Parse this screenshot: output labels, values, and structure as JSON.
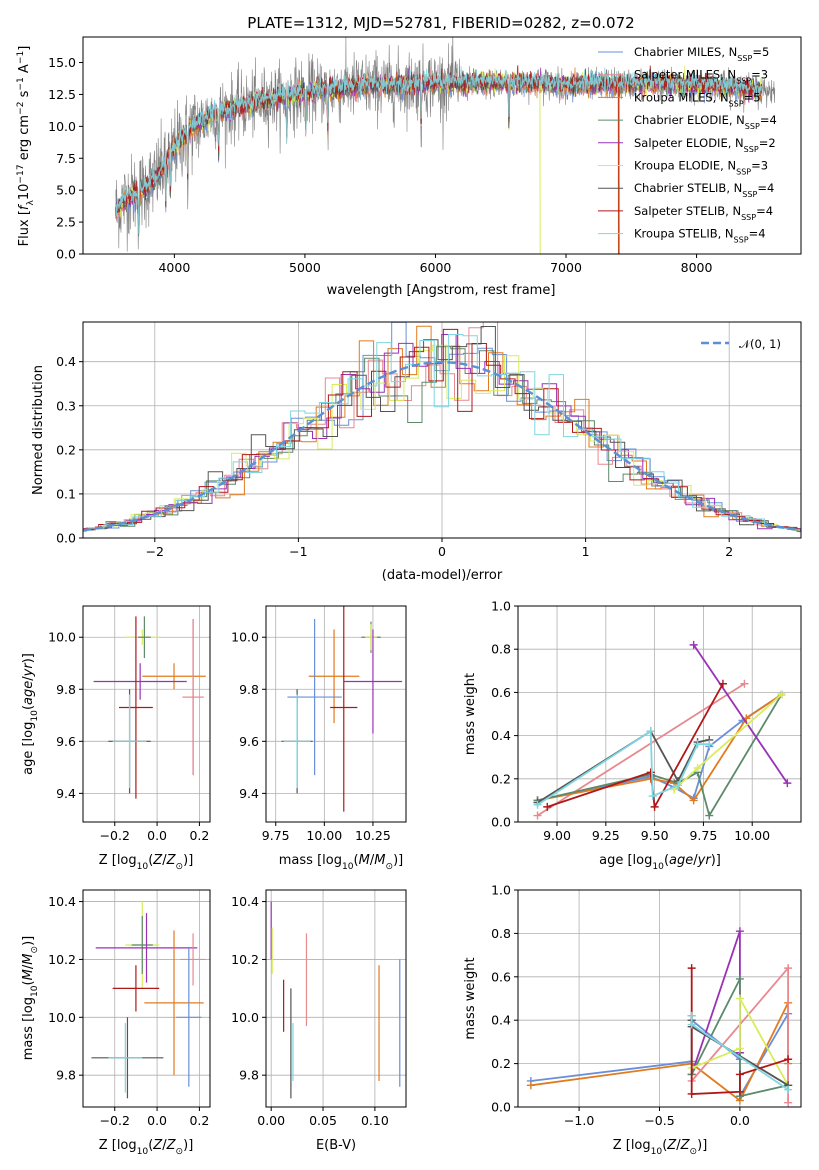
{
  "chart_data": [
    {
      "type": "line",
      "title": "PLATE=1312, MJD=52781, FIBERID=0282, z=0.072",
      "xlabel": "wavelength [Angstrom, rest frame]",
      "ylabel": "Flux [f_λ 10^-17 erg cm^-2 s^-1 A^-1]",
      "xlim": [
        3300,
        8800
      ],
      "ylim": [
        0,
        17
      ],
      "xticks": [
        4000,
        5000,
        6000,
        7000,
        8000
      ],
      "yticks": [
        0.0,
        2.5,
        5.0,
        7.5,
        10.0,
        12.5,
        15.0
      ],
      "legend_placement": "top-right",
      "continuum": {
        "x": [
          3550,
          3650,
          3750,
          3850,
          3950,
          4050,
          4150,
          4300,
          4500,
          4700,
          4900,
          5100,
          5300,
          5500,
          5700,
          5900,
          6100,
          6300,
          6500,
          6700,
          6900,
          7100,
          7300,
          7500,
          7700,
          7900,
          8100,
          8300,
          8500
        ],
        "y": [
          3.5,
          4.5,
          5.0,
          5.8,
          7.5,
          9.0,
          10.0,
          11.0,
          11.5,
          12.0,
          12.5,
          12.8,
          13.0,
          13.2,
          13.2,
          13.4,
          13.4,
          13.3,
          13.4,
          13.4,
          13.3,
          13.2,
          13.3,
          13.3,
          13.4,
          13.2,
          13.2,
          13.0,
          12.8
        ]
      },
      "series": [
        {
          "name": "Chabrier MILES, N_SSP=5",
          "color": "#6a8fd8"
        },
        {
          "name": "Salpeter MILES, N_SSP=3",
          "color": "#e8888f"
        },
        {
          "name": "Kroupa MILES, N_SSP=5",
          "color": "#e07b20"
        },
        {
          "name": "Chabrier ELODIE, N_SSP=4",
          "color": "#5c8a6a"
        },
        {
          "name": "Salpeter ELODIE, N_SSP=2",
          "color": "#9932b5"
        },
        {
          "name": "Kroupa ELODIE, N_SSP=3",
          "color": "#d9ec5a"
        },
        {
          "name": "Chabrier STELIB, N_SSP=4",
          "color": "#555555"
        },
        {
          "name": "Salpeter STELIB, N_SSP=4",
          "color": "#b01818"
        },
        {
          "name": "Kroupa STELIB, N_SSP=4",
          "color": "#7fd6e0"
        }
      ]
    },
    {
      "type": "histogram",
      "xlabel": "(data-model)/error",
      "ylabel": "Normed distribution",
      "xlim": [
        -2.5,
        2.5
      ],
      "ylim": [
        0,
        0.49
      ],
      "xticks": [
        -2,
        -1,
        0,
        1,
        2
      ],
      "yticks": [
        0.0,
        0.1,
        0.2,
        0.3,
        0.4
      ],
      "grid": true,
      "legend_placement": "top-right",
      "legend": "𝒩(0, 1)",
      "gaussian_color": "#5b8fd6"
    },
    {
      "type": "scatter",
      "xlabel": "Z [log10(Z/Z_sun)]",
      "ylabel": "age  [log10(age/yr)]",
      "xlim": [
        -0.35,
        0.25
      ],
      "ylim": [
        9.29,
        10.12
      ],
      "xticks": [
        -0.2,
        0.0,
        0.2
      ],
      "yticks": [
        9.4,
        9.6,
        9.8,
        10.0
      ],
      "grid": true,
      "points": [
        {
          "x": -0.07,
          "y": 10.0,
          "xe": 0.08,
          "ye": 0.03,
          "c": "#d9ec5a"
        },
        {
          "x": -0.06,
          "y": 10.0,
          "xe": 0.03,
          "ye": 0.08,
          "c": "#5c8a6a"
        },
        {
          "x": 0.08,
          "y": 9.85,
          "xe": 0.15,
          "ye": 0.05,
          "c": "#e07b20"
        },
        {
          "x": -0.08,
          "y": 9.83,
          "xe": 0.22,
          "ye": 0.07,
          "c": "#9932b5"
        },
        {
          "x": 0.17,
          "y": 9.77,
          "xe": 0.05,
          "ye": 0.3,
          "c": "#6a8fd8"
        },
        {
          "x": 0.17,
          "y": 9.77,
          "xe": 0.05,
          "ye": 0.3,
          "c": "#e8888f"
        },
        {
          "x": -0.1,
          "y": 9.73,
          "xe": 0.08,
          "ye": 0.35,
          "c": "#b01818"
        },
        {
          "x": -0.13,
          "y": 9.6,
          "xe": 0.1,
          "ye": 0.2,
          "c": "#555555"
        },
        {
          "x": -0.13,
          "y": 9.6,
          "xe": 0.08,
          "ye": 0.18,
          "c": "#7fd6e0"
        }
      ]
    },
    {
      "type": "scatter",
      "xlabel": "mass [log10(M/M_sun)]",
      "ylabel": "",
      "xlim": [
        9.7,
        10.42
      ],
      "ylim": [
        9.29,
        10.12
      ],
      "xticks": [
        9.75,
        10.0,
        10.25
      ],
      "yticks": [
        9.4,
        9.6,
        9.8,
        10.0
      ],
      "grid": true,
      "points": [
        {
          "x": 10.24,
          "y": 10.0,
          "xe": 0.05,
          "ye": 0.06,
          "c": "#5c8a6a"
        },
        {
          "x": 10.24,
          "y": 10.0,
          "xe": 0.03,
          "ye": 0.05,
          "c": "#d9ec5a"
        },
        {
          "x": 10.05,
          "y": 9.85,
          "xe": 0.13,
          "ye": 0.18,
          "c": "#e07b20"
        },
        {
          "x": 10.25,
          "y": 9.83,
          "xe": 0.15,
          "ye": 0.2,
          "c": "#9932b5"
        },
        {
          "x": 9.95,
          "y": 9.77,
          "xe": 0.14,
          "ye": 0.3,
          "c": "#6a8fd8"
        },
        {
          "x": 10.1,
          "y": 9.73,
          "xe": 0.07,
          "ye": 0.4,
          "c": "#b01818"
        },
        {
          "x": 9.86,
          "y": 9.6,
          "xe": 0.08,
          "ye": 0.2,
          "c": "#555555"
        },
        {
          "x": 9.86,
          "y": 9.6,
          "xe": 0.07,
          "ye": 0.18,
          "c": "#7fd6e0"
        }
      ]
    },
    {
      "type": "line",
      "xlabel": "age  [log10(age/yr)]",
      "ylabel": "mass weight",
      "xlim": [
        8.8,
        10.25
      ],
      "ylim": [
        0,
        1.0
      ],
      "xticks": [
        9.0,
        9.25,
        9.5,
        9.75,
        10.0
      ],
      "yticks": [
        0.0,
        0.2,
        0.4,
        0.6,
        0.8,
        1.0
      ],
      "grid": true,
      "series": [
        {
          "c": "#6a8fd8",
          "x": [
            8.9,
            9.48,
            9.6,
            9.7,
            9.78,
            9.95,
            10.15
          ],
          "y": [
            0.1,
            0.21,
            0.16,
            0.11,
            0.35,
            0.47,
            0.59
          ]
        },
        {
          "c": "#e8888f",
          "x": [
            8.9,
            9.96
          ],
          "y": [
            0.03,
            0.64
          ]
        },
        {
          "c": "#e07b20",
          "x": [
            8.9,
            9.48,
            9.6,
            9.7,
            9.97,
            10.15
          ],
          "y": [
            0.1,
            0.2,
            0.18,
            0.1,
            0.48,
            0.59
          ]
        },
        {
          "c": "#5c8a6a",
          "x": [
            8.9,
            9.48,
            9.62,
            9.72,
            9.78,
            10.15
          ],
          "y": [
            0.1,
            0.22,
            0.18,
            0.23,
            0.03,
            0.59
          ]
        },
        {
          "c": "#9932b5",
          "x": [
            9.7,
            10.18
          ],
          "y": [
            0.82,
            0.18
          ]
        },
        {
          "c": "#d9ec5a",
          "x": [
            9.6,
            9.72,
            10.15
          ],
          "y": [
            0.15,
            0.25,
            0.59
          ]
        },
        {
          "c": "#555555",
          "x": [
            8.9,
            9.48,
            9.62,
            9.72,
            9.78
          ],
          "y": [
            0.09,
            0.42,
            0.19,
            0.37,
            0.38
          ]
        },
        {
          "c": "#b01818",
          "x": [
            8.95,
            9.48,
            9.5,
            9.85
          ],
          "y": [
            0.07,
            0.23,
            0.07,
            0.64
          ]
        },
        {
          "c": "#7fd6e0",
          "x": [
            8.9,
            9.48,
            9.49,
            9.62,
            9.72,
            9.78
          ],
          "y": [
            0.08,
            0.42,
            0.12,
            0.17,
            0.36,
            0.36
          ]
        }
      ]
    },
    {
      "type": "scatter",
      "xlabel": "Z [log10(Z/Z_sun)]",
      "ylabel": "mass [log10(M/M_sun)]",
      "xlim": [
        -0.35,
        0.25
      ],
      "ylim": [
        9.69,
        10.44
      ],
      "xticks": [
        -0.2,
        0.0,
        0.2
      ],
      "yticks": [
        9.8,
        10.0,
        10.2,
        10.4
      ],
      "grid": true,
      "points": [
        {
          "x": -0.07,
          "y": 10.25,
          "xe": 0.08,
          "ye": 0.15,
          "c": "#d9ec5a"
        },
        {
          "x": -0.07,
          "y": 10.25,
          "xe": 0.05,
          "ye": 0.1,
          "c": "#5c8a6a"
        },
        {
          "x": -0.05,
          "y": 10.24,
          "xe": 0.24,
          "ye": 0.12,
          "c": "#9932b5"
        },
        {
          "x": 0.17,
          "y": 10.2,
          "xe": 0.06,
          "ye": 0.09,
          "c": "#e8888f"
        },
        {
          "x": -0.1,
          "y": 10.1,
          "xe": 0.11,
          "ye": 0.08,
          "c": "#b01818"
        },
        {
          "x": 0.08,
          "y": 10.05,
          "xe": 0.14,
          "ye": 0.25,
          "c": "#e07b20"
        },
        {
          "x": 0.15,
          "y": 10.0,
          "xe": 0.06,
          "ye": 0.24,
          "c": "#6a8fd8"
        },
        {
          "x": -0.14,
          "y": 9.86,
          "xe": 0.17,
          "ye": 0.14,
          "c": "#555555"
        },
        {
          "x": -0.15,
          "y": 9.86,
          "xe": 0.08,
          "ye": 0.12,
          "c": "#7fd6e0"
        }
      ]
    },
    {
      "type": "scatter",
      "xlabel": "E(B-V)",
      "ylabel": "",
      "xlim": [
        -0.005,
        0.13
      ],
      "ylim": [
        9.69,
        10.44
      ],
      "xticks": [
        0.0,
        0.05,
        0.1
      ],
      "yticks": [
        9.8,
        10.0,
        10.2,
        10.4
      ],
      "grid": true,
      "points": [
        {
          "x": 0.0,
          "y": 10.3,
          "xe": 0,
          "ye": 0.1,
          "c": "#9932b5"
        },
        {
          "x": 0.001,
          "y": 10.23,
          "xe": 0,
          "ye": 0.08,
          "c": "#d9ec5a"
        },
        {
          "x": 0.012,
          "y": 10.04,
          "xe": 0,
          "ye": 0.09,
          "c": "#b01818"
        },
        {
          "x": 0.019,
          "y": 9.91,
          "xe": 0,
          "ye": 0.19,
          "c": "#555555"
        },
        {
          "x": 0.021,
          "y": 9.88,
          "xe": 0,
          "ye": 0.1,
          "c": "#7fd6e0"
        },
        {
          "x": 0.034,
          "y": 10.13,
          "xe": 0,
          "ye": 0.16,
          "c": "#e8888f"
        },
        {
          "x": 0.104,
          "y": 9.98,
          "xe": 0,
          "ye": 0.2,
          "c": "#e07b20"
        },
        {
          "x": 0.124,
          "y": 9.98,
          "xe": 0,
          "ye": 0.22,
          "c": "#6a8fd8"
        }
      ]
    },
    {
      "type": "line",
      "xlabel": "Z [log10(Z/Z_sun)]",
      "ylabel": "mass weight",
      "xlim": [
        -1.38,
        0.38
      ],
      "ylim": [
        0,
        1.0
      ],
      "xticks": [
        -1.0,
        -0.5,
        0.0
      ],
      "yticks": [
        0.0,
        0.2,
        0.4,
        0.6,
        0.8,
        1.0
      ],
      "grid": true,
      "series": [
        {
          "c": "#6a8fd8",
          "x": [
            -1.3,
            -0.3,
            -0.3,
            0.0,
            0.0,
            0.3,
            0.3
          ],
          "y": [
            0.12,
            0.21,
            0.4,
            0.22,
            0.05,
            0.43,
            0.1
          ]
        },
        {
          "c": "#e07b20",
          "x": [
            -1.3,
            -0.3,
            0.0,
            0.3,
            0.3
          ],
          "y": [
            0.1,
            0.2,
            0.03,
            0.48,
            0.2
          ]
        },
        {
          "c": "#e8888f",
          "x": [
            -0.3,
            0.3,
            0.3
          ],
          "y": [
            0.12,
            0.64,
            0.02
          ]
        },
        {
          "c": "#9932b5",
          "x": [
            -0.3,
            0.0,
            0.0
          ],
          "y": [
            0.15,
            0.81,
            0.25
          ]
        },
        {
          "c": "#5c8a6a",
          "x": [
            -0.3,
            -0.3,
            0.0,
            0.0,
            0.3
          ],
          "y": [
            0.42,
            0.15,
            0.59,
            0.05,
            0.1
          ]
        },
        {
          "c": "#d9ec5a",
          "x": [
            -0.3,
            0.0,
            0.0,
            0.3
          ],
          "y": [
            0.18,
            0.27,
            0.5,
            0.1
          ]
        },
        {
          "c": "#555555",
          "x": [
            -0.3,
            -0.3,
            0.3
          ],
          "y": [
            0.4,
            0.37,
            0.1
          ]
        },
        {
          "c": "#b01818",
          "x": [
            -0.3,
            -0.3,
            0.0,
            0.0,
            0.3
          ],
          "y": [
            0.64,
            0.06,
            0.07,
            0.15,
            0.22
          ]
        },
        {
          "c": "#7fd6e0",
          "x": [
            -0.3,
            -0.3,
            0.3
          ],
          "y": [
            0.42,
            0.38,
            0.08
          ]
        }
      ]
    }
  ]
}
